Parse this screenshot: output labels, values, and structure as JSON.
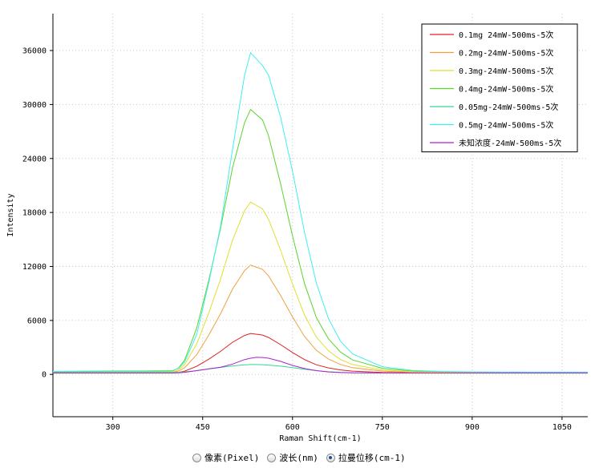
{
  "chart_data": {
    "type": "line",
    "xlabel": "Raman Shift(cm-1)",
    "ylabel": "Intensity",
    "x": [
      200,
      250,
      300,
      350,
      400,
      410,
      420,
      440,
      460,
      480,
      500,
      520,
      530,
      540,
      550,
      560,
      580,
      600,
      620,
      640,
      660,
      680,
      700,
      750,
      800,
      850,
      900,
      1000,
      1093
    ],
    "xlim": [
      200,
      1093
    ],
    "xticks": [
      300,
      450,
      600,
      750,
      900,
      1050
    ],
    "ylim": [
      -4700,
      40100
    ],
    "yticks": [
      0,
      6000,
      12000,
      18000,
      24000,
      30000,
      36000
    ],
    "grid": true,
    "legend": "upper right",
    "series": [
      {
        "name": "0.1mg 24mW-500ms-5次",
        "color": "#e02020",
        "values": [
          172,
          176,
          181,
          181,
          185,
          238,
          370,
          898,
          1690,
          2570,
          3582,
          4330,
          4550,
          4462,
          4374,
          4110,
          3318,
          2438,
          1646,
          1074,
          722,
          502,
          370,
          229,
          185,
          172,
          167,
          163,
          163
        ]
      },
      {
        "name": "0.2mg-24mW-500ms-5次",
        "color": "#f0a040",
        "values": [
          210,
          222,
          234,
          234,
          246,
          390,
          750,
          2190,
          4350,
          6750,
          9510,
          11550,
          12150,
          11910,
          11670,
          10950,
          8790,
          6390,
          4230,
          2670,
          1710,
          1110,
          750,
          366,
          246,
          210,
          198,
          186,
          186
        ]
      },
      {
        "name": "0.3mg-24mW-500ms-5次",
        "color": "#e0e030",
        "values": [
          245,
          264,
          283,
          283,
          302,
          530,
          1100,
          3380,
          6800,
          10600,
          14970,
          18200,
          19150,
          18770,
          18390,
          17250,
          13830,
          10030,
          6610,
          4140,
          2620,
          1670,
          1100,
          492,
          302,
          245,
          226,
          207,
          207
        ]
      },
      {
        "name": "0.4mg-24mW-500ms-5次",
        "color": "#5ad52a",
        "values": [
          297,
          326,
          355,
          355,
          384,
          736,
          1615,
          5131,
          10405,
          16265,
          23004,
          27985,
          29450,
          28864,
          28278,
          26520,
          21246,
          15386,
          10112,
          6303,
          3959,
          2494,
          1615,
          677,
          384,
          297,
          267,
          238,
          238
        ]
      },
      {
        "name": "0.05mg-24mW-500ms-5次",
        "color": "#30d890",
        "values": [
          200,
          205,
          210,
          210,
          215,
          240,
          290,
          420,
          600,
          780,
          950,
          1060,
          1100,
          1100,
          1080,
          1040,
          920,
          760,
          580,
          420,
          300,
          230,
          190,
          160,
          150,
          150,
          150,
          150,
          150
        ]
      },
      {
        "name": "0.5mg-24mW-500ms-5次",
        "color": "#40eef0",
        "values": [
          328,
          364,
          399,
          399,
          435,
          684,
          1396,
          4422,
          10118,
          16526,
          25070,
          33258,
          35750,
          35038,
          34326,
          33258,
          28630,
          22578,
          15814,
          10118,
          6202,
          3710,
          2286,
          862,
          435,
          328,
          292,
          257,
          257
        ]
      },
      {
        "name": "未知浓度-24mW-500ms-5次",
        "color": "#b020d0",
        "values": [
          150,
          150,
          150,
          150,
          150,
          170,
          230,
          420,
          620,
          800,
          1150,
          1650,
          1800,
          1900,
          1880,
          1800,
          1450,
          1000,
          650,
          420,
          280,
          210,
          180,
          160,
          150,
          150,
          150,
          150,
          150
        ]
      }
    ]
  },
  "ui": {
    "radio_options": [
      "像素(Pixel)",
      "波长(nm)",
      "拉曼位移(cm-1)"
    ],
    "selected": 2
  }
}
